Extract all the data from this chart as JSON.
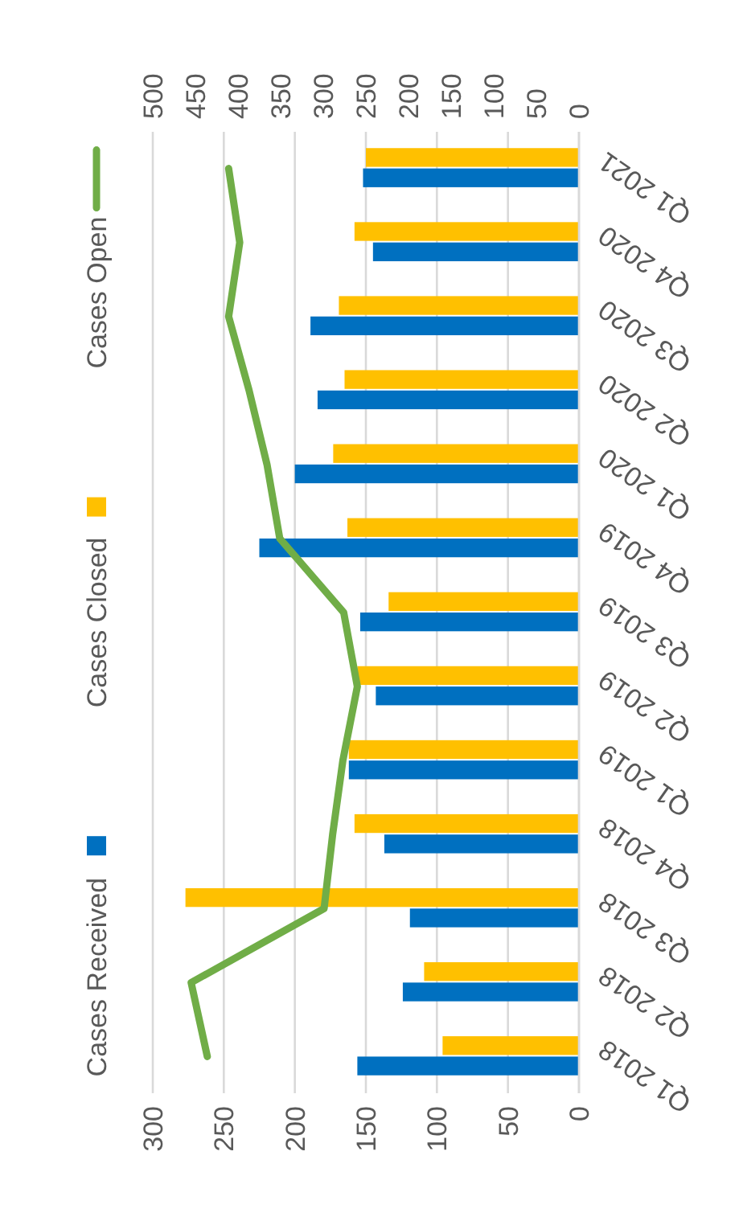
{
  "chart_data": {
    "type": "bar",
    "orientation": "horizontal",
    "categories": [
      "Q1 2021",
      "Q4 2020",
      "Q3 2020",
      "Q2 2020",
      "Q1 2020",
      "Q4 2019",
      "Q3 2019",
      "Q2 2019",
      "Q1 2019",
      "Q4 2018",
      "Q3 2018",
      "Q2 2018",
      "Q1 2018"
    ],
    "series": [
      {
        "name": "Cases Received",
        "color": "#0070c0",
        "values": [
          152,
          145,
          189,
          184,
          200,
          225,
          154,
          143,
          162,
          137,
          119,
          124,
          156
        ]
      },
      {
        "name": "Cases Closed",
        "color": "#ffc000",
        "values": [
          150,
          158,
          169,
          165,
          173,
          163,
          134,
          156,
          162,
          158,
          277,
          109,
          96
        ]
      },
      {
        "name": "Cases Open",
        "type": "line",
        "axis": "x2",
        "color": "#70ad47",
        "values": [
          411,
          398,
          411,
          387,
          366,
          351,
          276,
          260,
          277,
          289,
          299,
          455,
          436
        ]
      }
    ],
    "xlim": [
      300,
      0
    ],
    "xticks": [
      300,
      250,
      200,
      150,
      100,
      50,
      0
    ],
    "x2lim": [
      500,
      0
    ],
    "x2ticks": [
      500,
      450,
      400,
      350,
      300,
      250,
      200,
      150,
      100,
      50,
      0
    ],
    "grid": "x",
    "legend": "left"
  }
}
